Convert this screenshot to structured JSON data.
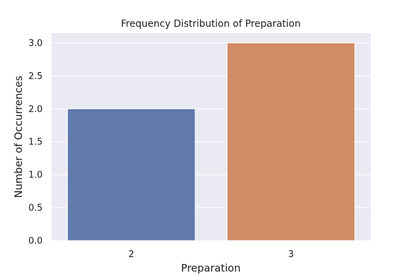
{
  "chart_data": {
    "type": "bar",
    "title": "Frequency Distribution of Preparation",
    "xlabel": "Preparation",
    "ylabel": "Number of Occurrences",
    "categories": [
      "2",
      "3"
    ],
    "values": [
      2,
      3
    ],
    "ylim": [
      0,
      3.15
    ],
    "yticks": [
      "0.0",
      "0.5",
      "1.0",
      "1.5",
      "2.0",
      "2.5",
      "3.0"
    ],
    "grid": true,
    "colors": [
      "#5f7aab",
      "#d18b65"
    ],
    "background": "#eaeaf2"
  }
}
